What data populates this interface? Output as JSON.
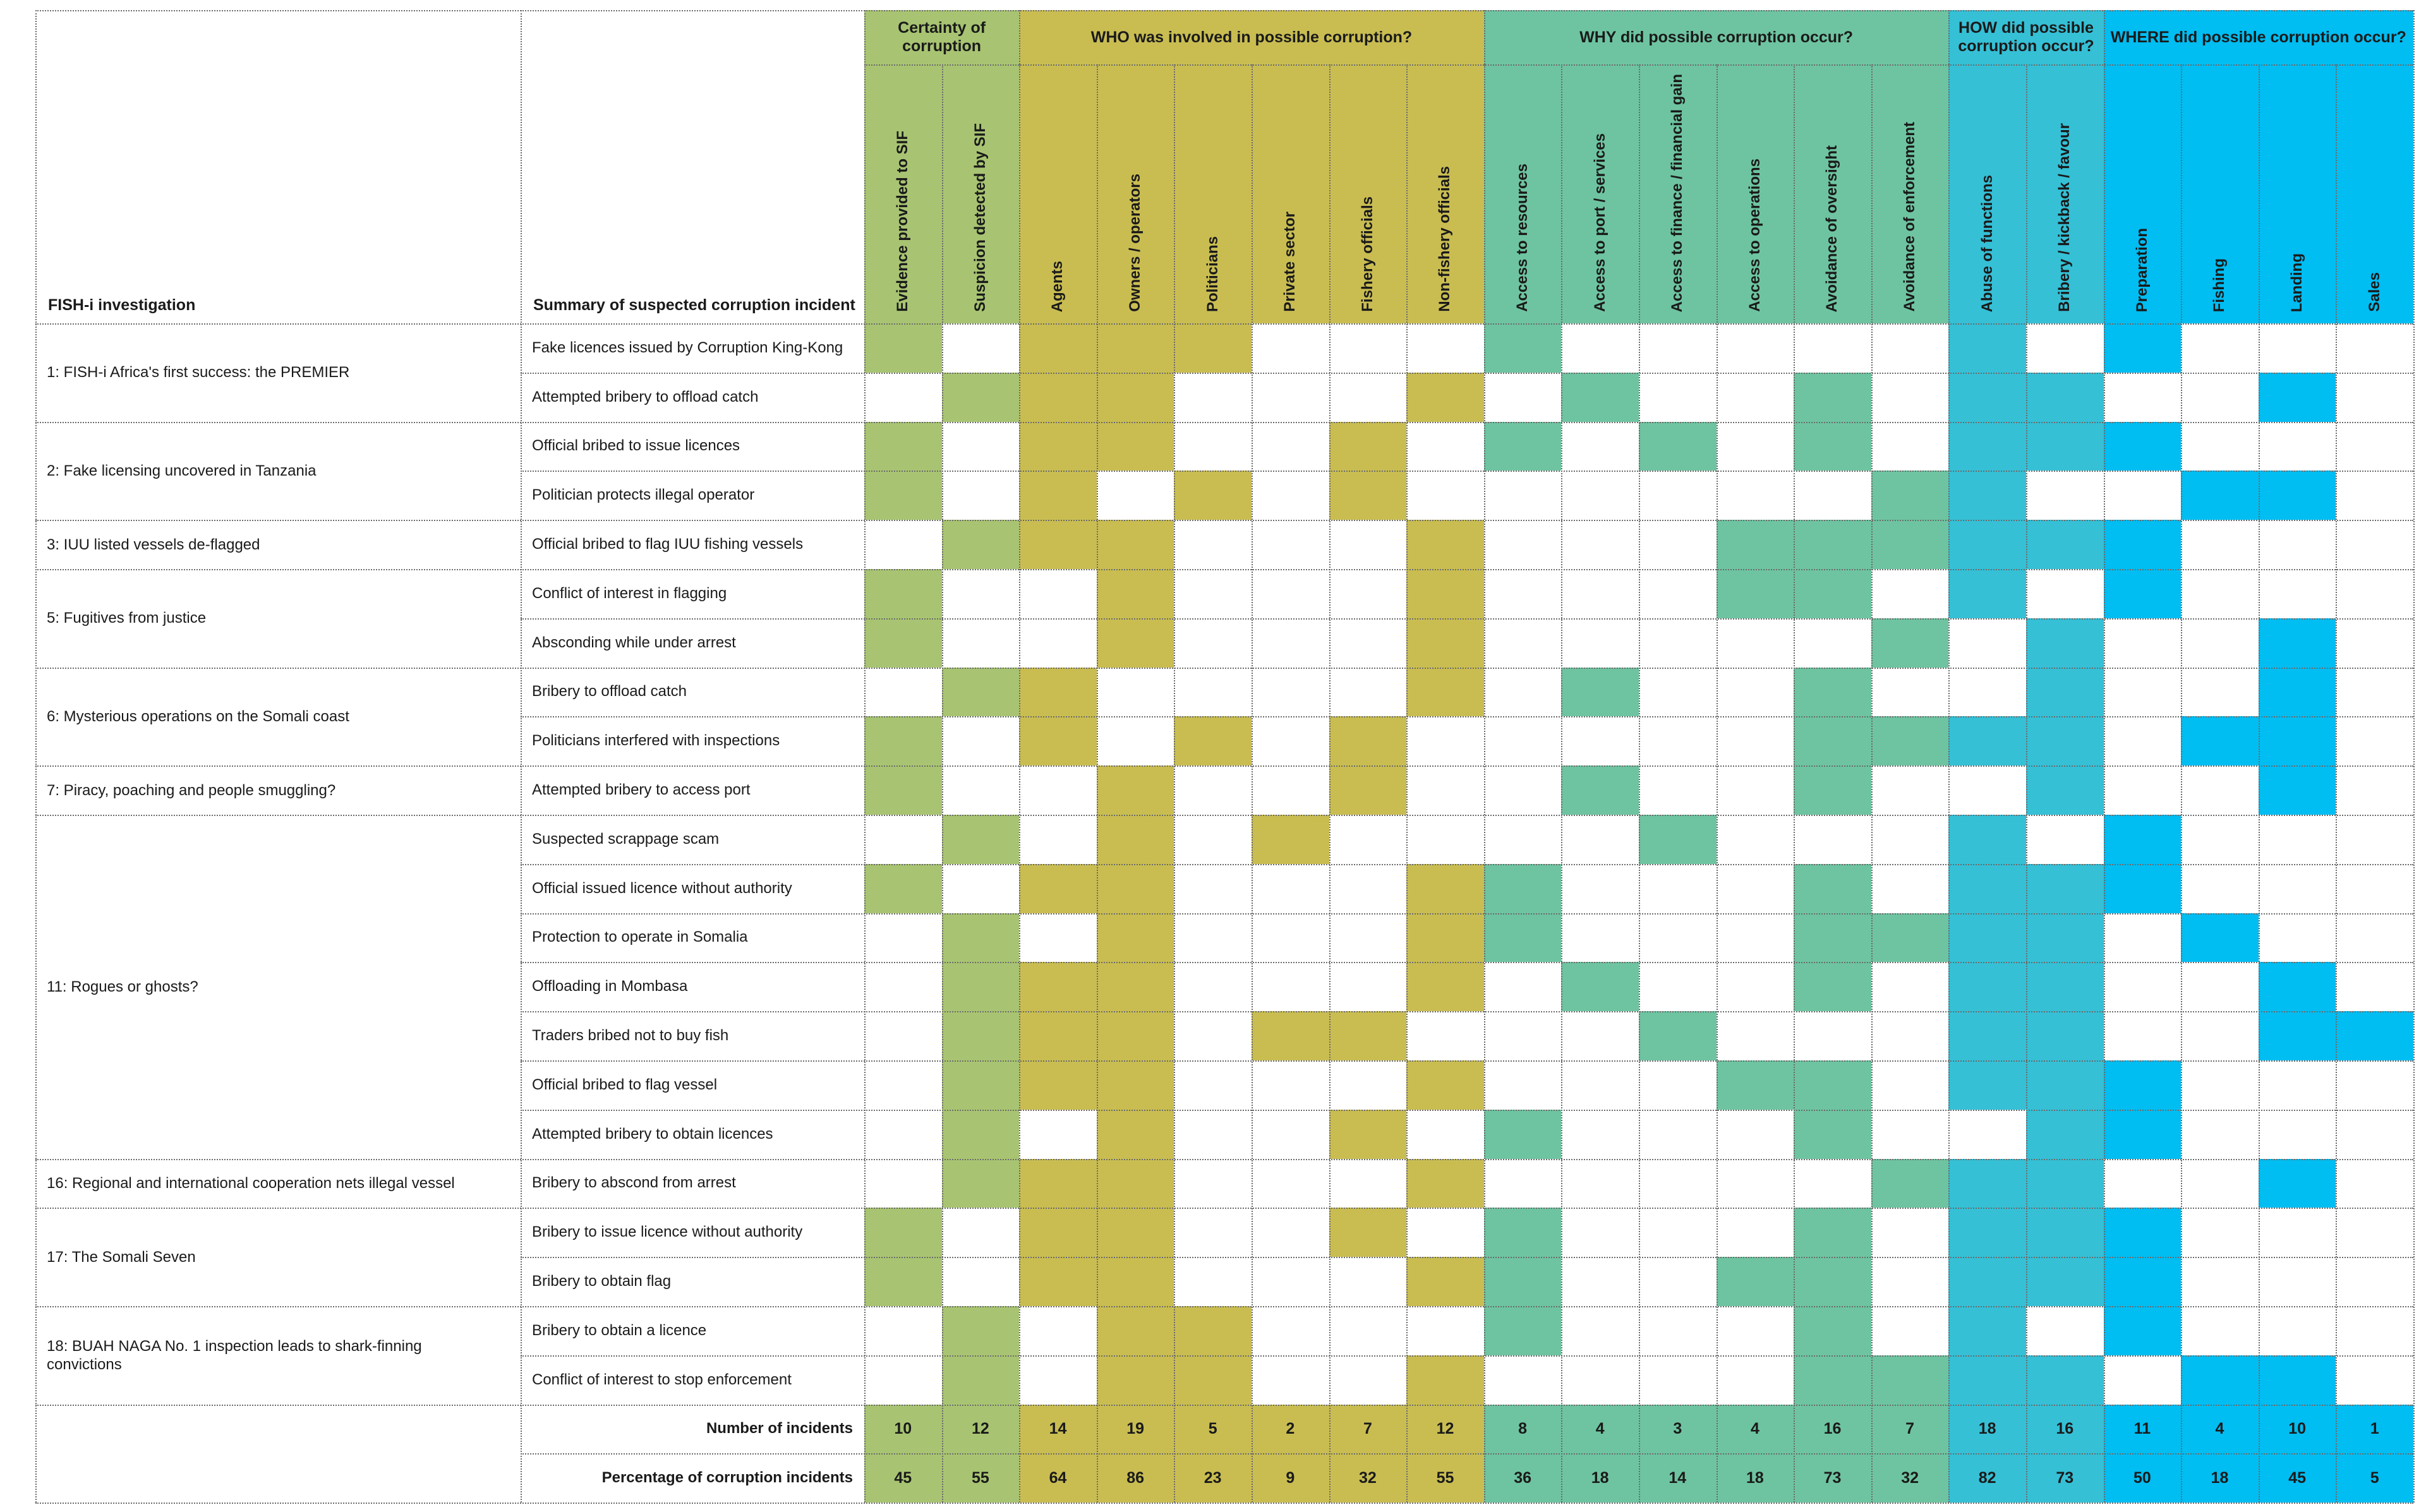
{
  "header": {
    "investigation_title": "FISH-i investigation",
    "summary_title": "Summary of suspected corruption incident"
  },
  "groups": [
    {
      "label": "Certainty of corruption",
      "color": "#a8c472",
      "span": 2
    },
    {
      "label": "WHO was involved in possible corruption?",
      "color": "#c9bd52",
      "span": 6
    },
    {
      "label": "WHY did possible corruption occur?",
      "color": "#6ec4a1",
      "span": 6
    },
    {
      "label": "HOW did possible corruption occur?",
      "color": "#35c0d6",
      "span": 2
    },
    {
      "label": "WHERE did possible corruption occur?",
      "color": "#00bdf2",
      "span": 4
    }
  ],
  "columns": [
    "Evidence provided to SIF",
    "Suspicion detected by SIF",
    "Agents",
    "Owners / operators",
    "Politicians",
    "Private sector",
    "Fishery officials",
    "Non-fishery officials",
    "Access to resources",
    "Access to port / services",
    "Access to finance / financial gain",
    "Access to operations",
    "Avoidance of oversight",
    "Avoidance of enforcement",
    "Abuse of functions",
    "Bribery / kickback / favour",
    "Preparation",
    "Fishing",
    "Landing",
    "Sales"
  ],
  "investigations": [
    {
      "title": "1: FISH-i Africa's first success: the PREMIER",
      "rows": 2
    },
    {
      "title": "2: Fake licensing uncovered in Tanzania",
      "rows": 2
    },
    {
      "title": "3: IUU listed vessels de-flagged",
      "rows": 1
    },
    {
      "title": "5: Fugitives from justice",
      "rows": 2
    },
    {
      "title": "6: Mysterious operations on the Somali coast",
      "rows": 2
    },
    {
      "title": "7: Piracy, poaching and people smuggling?",
      "rows": 1
    },
    {
      "title": "11: Rogues or ghosts?",
      "rows": 7
    },
    {
      "title": "16: Regional and international cooperation nets illegal vessel",
      "rows": 1
    },
    {
      "title": "17: The Somali Seven",
      "rows": 2
    },
    {
      "title": "18: BUAH NAGA No. 1 inspection leads to shark-finning convictions",
      "rows": 2
    }
  ],
  "incidents": [
    {
      "summary": "Fake licences issued by Corruption King-Kong",
      "marks": "10111000100000101000"
    },
    {
      "summary": "Attempted bribery to offload catch",
      "marks": "01110001010010110010"
    },
    {
      "summary": "Official bribed to issue licences",
      "marks": "10110010101010111000"
    },
    {
      "summary": "Politician protects illegal operator",
      "marks": "10101010000001100110"
    },
    {
      "summary": "Official bribed to flag IUU fishing vessels",
      "marks": "01110001000111111000"
    },
    {
      "summary": "Conflict of interest in flagging",
      "marks": "10010001000110101000"
    },
    {
      "summary": "Absconding while under arrest",
      "marks": "10010001000001010010"
    },
    {
      "summary": "Bribery to offload catch",
      "marks": "01100001010010010010"
    },
    {
      "summary": "Politicians interfered with inspections",
      "marks": "10101010000011110110"
    },
    {
      "summary": "Attempted bribery to access port",
      "marks": "10010010010010010010"
    },
    {
      "summary": "Suspected scrappage scam",
      "marks": "01010100001000101000"
    },
    {
      "summary": "Official issued licence without authority",
      "marks": "10110001100010111000"
    },
    {
      "summary": "Protection to operate in Somalia",
      "marks": "01010001100011110100"
    },
    {
      "summary": "Offloading in Mombasa",
      "marks": "01110001010010110010"
    },
    {
      "summary": "Traders bribed not to buy fish",
      "marks": "01110110001000110011"
    },
    {
      "summary": "Official bribed to flag vessel",
      "marks": "01110001000110111000"
    },
    {
      "summary": "Attempted bribery to obtain licences",
      "marks": "01010010100010011000"
    },
    {
      "summary": "Bribery to abscond from arrest",
      "marks": "01110001000001110010"
    },
    {
      "summary": "Bribery to issue licence without authority",
      "marks": "10110010100010111000"
    },
    {
      "summary": "Bribery to obtain flag",
      "marks": "10110001100110111000"
    },
    {
      "summary": "Bribery to obtain a licence",
      "marks": "01011000100010101000"
    },
    {
      "summary": "Conflict of interest to stop enforcement",
      "marks": "01011001000011110110"
    }
  ],
  "totals": {
    "number_label": "Number of incidents",
    "number_values": [
      "10",
      "12",
      "14",
      "19",
      "5",
      "2",
      "7",
      "12",
      "8",
      "4",
      "3",
      "4",
      "16",
      "7",
      "18",
      "16",
      "11",
      "4",
      "10",
      "1"
    ],
    "percent_label": "Percentage of corruption incidents",
    "percent_values": [
      "45",
      "55",
      "64",
      "86",
      "23",
      "9",
      "32",
      "55",
      "36",
      "18",
      "14",
      "18",
      "73",
      "32",
      "82",
      "73",
      "50",
      "18",
      "45",
      "5"
    ]
  }
}
